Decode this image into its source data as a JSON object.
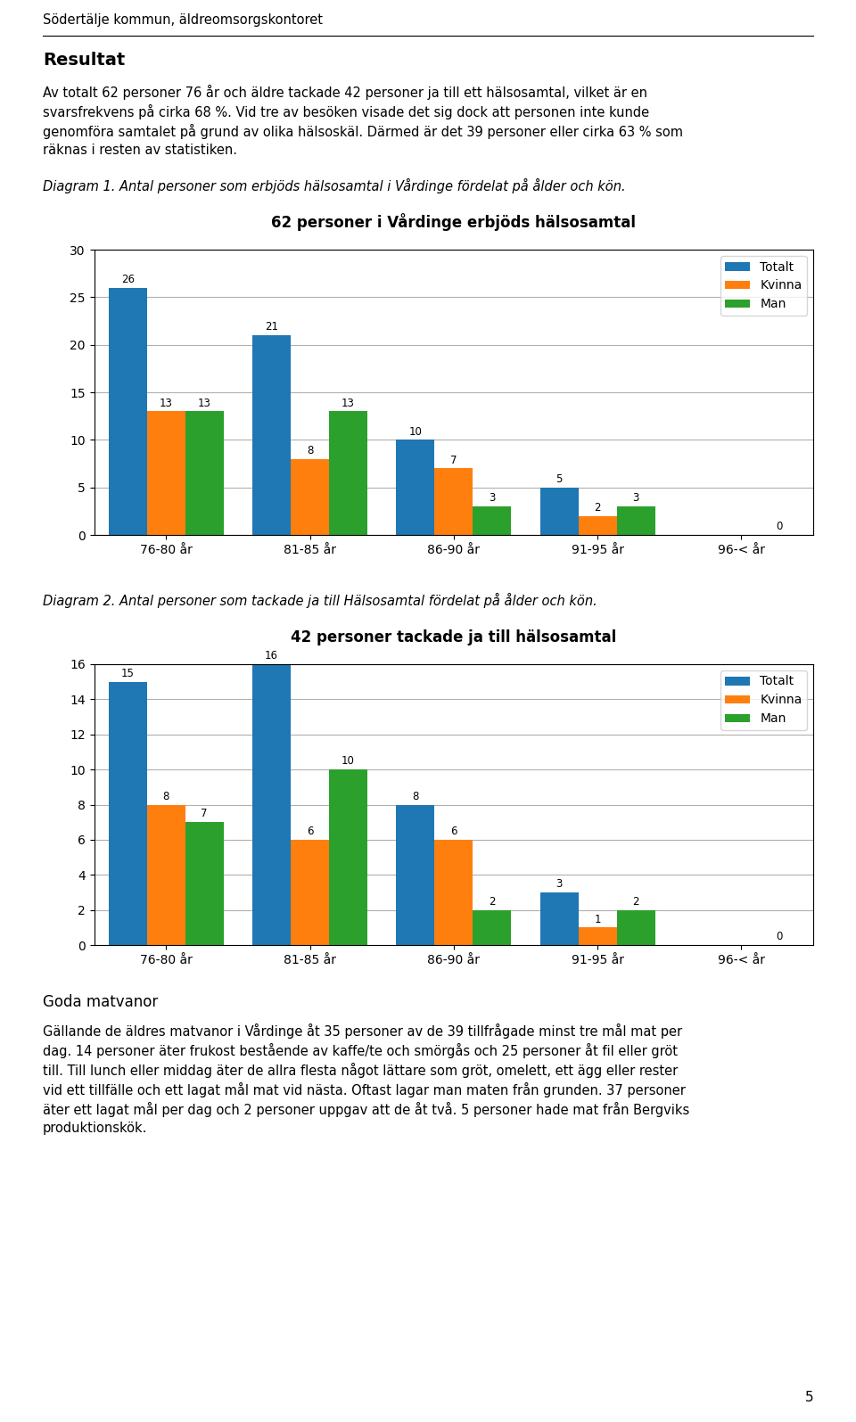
{
  "header": "Södertälje kommun, äldreomsorgskontoret",
  "section_title": "Resultat",
  "section_text": [
    "Av totalt 62 personer 76 år och äldre tackade 42 personer ja till ett hälsosamtal, vilket är en",
    "svarsfrekvens på cirka 68 %. Vid tre av besöken visade det sig dock att personen inte kunde",
    "genomföra samtalet på grund av olika hälsoskäl. Därmed är det 39 personer eller cirka 63 % som",
    "räknas i resten av statistiken."
  ],
  "chart_data": [
    {
      "type": "bar",
      "subtitle": "Diagram 1. Antal personer som erbjöds hälsosamtal i Vårdinge fördelat på ålder och kön.",
      "title": "62 personer i Vårdinge erbjöds hälsosamtal",
      "categories": [
        "76-80 år",
        "81-85 år",
        "86-90 år",
        "91-95 år",
        "96-< år"
      ],
      "series": [
        {
          "name": "Totalt",
          "values": [
            26,
            21,
            10,
            5,
            0
          ],
          "value_labels": [
            "26",
            "21",
            "10",
            "5",
            null
          ]
        },
        {
          "name": "Kvinna",
          "values": [
            13,
            8,
            7,
            2,
            0
          ],
          "value_labels": [
            "13",
            "8",
            "7",
            "2",
            null
          ]
        },
        {
          "name": "Man",
          "values": [
            13,
            13,
            3,
            3,
            0
          ]
        }
      ],
      "ylim": [
        0,
        30
      ],
      "yticks": [
        0,
        5,
        10,
        15,
        20,
        25,
        30
      ],
      "grid": true,
      "legend": "upper right",
      "data_labels": true
    },
    {
      "type": "bar",
      "subtitle": "Diagram 2. Antal personer som tackade ja till Hälsosamtal fördelat på ålder och kön.",
      "title": "42 personer tackade ja till hälsosamtal",
      "categories": [
        "76-80 år",
        "81-85 år",
        "86-90 år",
        "91-95 år",
        "96-< år"
      ],
      "series": [
        {
          "name": "Totalt",
          "values": [
            15,
            16,
            8,
            3,
            0
          ],
          "value_labels": [
            "15",
            "16",
            "8",
            "3",
            null
          ]
        },
        {
          "name": "Kvinna",
          "values": [
            8,
            6,
            6,
            1,
            0
          ],
          "value_labels": [
            "8",
            "6",
            "6",
            "1",
            null
          ]
        },
        {
          "name": "Man",
          "values": [
            7,
            10,
            2,
            2,
            0
          ]
        }
      ],
      "ylim": [
        0,
        16
      ],
      "yticks": [
        0,
        2,
        4,
        6,
        8,
        10,
        12,
        14,
        16
      ],
      "grid": true,
      "legend": "upper right",
      "data_labels": true
    }
  ],
  "section2_title": "Goda matvanor",
  "section2_text": [
    "Gällande de äldres matvanor i Vårdinge åt 35 personer av de 39 tillfrågade minst tre mål mat per",
    "dag. 14 personer äter frukost bestående av kaffe/te och smörgås och 25 personer åt fil eller gröt",
    "till. Till lunch eller middag äter de allra flesta något lättare som gröt, omelett, ett ägg eller rester",
    "vid ett tillfälle och ett lagat mål mat vid nästa. Oftast lagar man maten från grunden. 37 personer",
    "äter ett lagat mål per dag och 2 personer uppgav att de åt två. 5 personer hade mat från Bergviks",
    "produktionskök."
  ],
  "page_number": "5"
}
